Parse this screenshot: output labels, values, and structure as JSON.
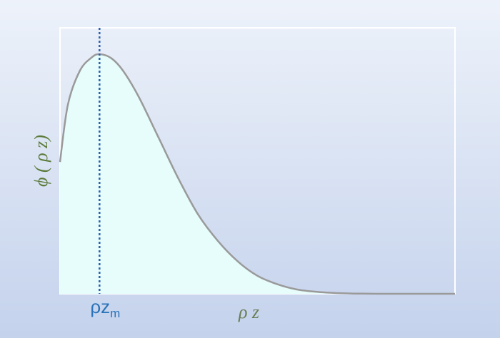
{
  "chart_data": {
    "type": "area",
    "title": "",
    "xlabel": "ρ z",
    "ylabel": "ϕ ( ρ z)",
    "xlim": [
      0,
      1
    ],
    "ylim": [
      0,
      1.1
    ],
    "grid": false,
    "legend": "none",
    "series": [
      {
        "x": [
          0.0,
          0.02,
          0.05,
          0.08,
          0.1,
          0.13,
          0.16,
          0.2,
          0.25,
          0.3,
          0.35,
          0.4,
          0.45,
          0.5,
          0.55,
          0.6,
          0.65,
          0.7,
          0.75,
          0.8,
          0.85,
          0.9,
          0.95,
          1.0
        ],
        "y": [
          0.55,
          0.79,
          0.93,
          0.986,
          1.0,
          0.983,
          0.93,
          0.82,
          0.65,
          0.48,
          0.33,
          0.22,
          0.135,
          0.075,
          0.04,
          0.018,
          0.008,
          0.003,
          0.001,
          0.0,
          0.0,
          0.0,
          0.0,
          0.0
        ]
      }
    ],
    "marker": {
      "x": 0.1,
      "label_main": "ρz",
      "label_sub": "m"
    },
    "colors": {
      "fill": "#e6fdfb",
      "curve": "#9a9a9a",
      "frame": "#ffffff",
      "marker_line": "#2e5fae",
      "ylabel": "#5c7a3a",
      "xlabel": "#6a7f56",
      "marker_label": "#2b73b8"
    }
  }
}
